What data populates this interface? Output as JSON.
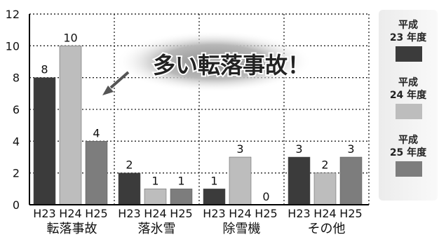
{
  "chart_data": {
    "type": "bar",
    "categories": [
      "転落事故",
      "落氷雪",
      "除雪機",
      "その他"
    ],
    "sub_categories": [
      "H23",
      "H24",
      "H25"
    ],
    "series": [
      {
        "name": "平成\n23 年度",
        "color": "#3b3b3b",
        "values": [
          8,
          2,
          1,
          3
        ]
      },
      {
        "name": "平成\n24 年度",
        "color": "#bdbdbd",
        "values": [
          10,
          1,
          3,
          2
        ]
      },
      {
        "name": "平成\n25 年度",
        "color": "#7d7d7d",
        "values": [
          4,
          1,
          0,
          3
        ]
      }
    ],
    "data_labels": [
      [
        "8",
        "10",
        "4"
      ],
      [
        "2",
        "1",
        "1"
      ],
      [
        "1",
        "3",
        "0"
      ],
      [
        "3",
        "2",
        "3"
      ]
    ],
    "yticks": [
      "0",
      "2",
      "4",
      "6",
      "8",
      "10",
      "12"
    ],
    "ylim": [
      0,
      12
    ],
    "grid": true,
    "legend_position": "right",
    "annotation": "多い転落事故！",
    "title": ""
  }
}
